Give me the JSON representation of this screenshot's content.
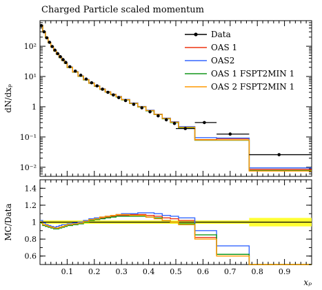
{
  "title": "Charged Particle scaled momentum",
  "chart_data": [
    {
      "type": "line",
      "panel": "main",
      "ylabel": "dN/dx_p",
      "yscale": "log",
      "ylim": [
        0.005,
        700
      ],
      "xlim": [
        0.0,
        1.0
      ],
      "yticks": [
        {
          "value": 0.01,
          "label": "10⁻²"
        },
        {
          "value": 0.1,
          "label": "10⁻¹"
        },
        {
          "value": 1,
          "label": "1"
        },
        {
          "value": 10,
          "label": "10¹"
        },
        {
          "value": 100,
          "label": "10²"
        }
      ],
      "legend_position": "top-right",
      "data": {
        "name": "Data",
        "color": "#000000",
        "points": [
          [
            0.005,
            480
          ],
          [
            0.015,
            300
          ],
          [
            0.025,
            190
          ],
          [
            0.035,
            135
          ],
          [
            0.045,
            98
          ],
          [
            0.055,
            74
          ],
          [
            0.065,
            57
          ],
          [
            0.075,
            45
          ],
          [
            0.085,
            36
          ],
          [
            0.095,
            29
          ],
          [
            0.11,
            21
          ],
          [
            0.13,
            15
          ],
          [
            0.15,
            11
          ],
          [
            0.17,
            8.2
          ],
          [
            0.19,
            6.2
          ],
          [
            0.21,
            4.9
          ],
          [
            0.23,
            3.8
          ],
          [
            0.25,
            3.0
          ],
          [
            0.27,
            2.45
          ],
          [
            0.29,
            2.0
          ],
          [
            0.315,
            1.6
          ],
          [
            0.345,
            1.2
          ],
          [
            0.375,
            0.92
          ],
          [
            0.405,
            0.68
          ],
          [
            0.435,
            0.5
          ],
          [
            0.465,
            0.37
          ],
          [
            0.495,
            0.28
          ],
          [
            0.535,
            0.19
          ],
          [
            0.605,
            0.3
          ],
          [
            0.7,
            0.125
          ],
          [
            0.88,
            0.026
          ]
        ],
        "xerr": [
          [
            0.5,
            0.57
          ],
          [
            0.57,
            0.65
          ],
          [
            0.65,
            0.77
          ],
          [
            0.77,
            1.0
          ]
        ]
      },
      "series": [
        {
          "name": "OAS 1",
          "color": "#ee3311",
          "values": [
            490,
            300,
            190,
            132,
            95,
            71,
            55,
            43,
            34,
            27.5,
            20,
            14,
            10.2,
            7.8,
            6.0,
            4.8,
            3.8,
            3.1,
            2.55,
            2.15,
            1.7,
            1.3,
            1.0,
            0.75,
            0.56,
            0.41,
            0.31,
            0.21,
            0.082,
            0.088,
            0.0085
          ]
        },
        {
          "name": "OAS2",
          "color": "#3366ff",
          "values": [
            500,
            305,
            192,
            134,
            96,
            72,
            56,
            44,
            35,
            28,
            20.5,
            14.5,
            10.5,
            8.0,
            6.2,
            4.9,
            3.9,
            3.15,
            2.6,
            2.2,
            1.75,
            1.33,
            1.02,
            0.77,
            0.57,
            0.42,
            0.32,
            0.22,
            0.095,
            0.092,
            0.0095
          ]
        },
        {
          "name": "OAS 1 FSPT2MIN 1",
          "color": "#109618",
          "values": [
            485,
            298,
            188,
            130,
            94,
            70,
            54,
            42,
            33.5,
            27,
            19.8,
            14,
            10.1,
            7.7,
            5.95,
            4.75,
            3.75,
            3.05,
            2.5,
            2.1,
            1.68,
            1.28,
            0.98,
            0.73,
            0.55,
            0.4,
            0.3,
            0.2,
            0.078,
            0.078,
            0.0078
          ]
        },
        {
          "name": "OAS 2 FSPT2MIN 1",
          "color": "#ff9900",
          "values": [
            488,
            300,
            190,
            131,
            95,
            71,
            55,
            43,
            34,
            27.6,
            20.2,
            14.2,
            10.3,
            7.85,
            6.05,
            4.82,
            3.82,
            3.1,
            2.55,
            2.15,
            1.71,
            1.3,
            1.0,
            0.75,
            0.56,
            0.41,
            0.31,
            0.21,
            0.08,
            0.08,
            0.0075
          ]
        }
      ]
    },
    {
      "type": "line",
      "panel": "ratio",
      "ylabel": "MC/Data",
      "xlabel": "x_p",
      "ylim": [
        0.5,
        1.5
      ],
      "xlim": [
        0.0,
        1.0
      ],
      "yticks": [
        0.6,
        0.8,
        1.0,
        1.2,
        1.4
      ],
      "xticks": [
        0.1,
        0.2,
        0.3,
        0.4,
        0.5,
        0.6,
        0.7,
        0.8,
        0.9
      ],
      "band_color": "#ffff33",
      "band": [
        [
          0.0,
          0.77,
          0.98,
          1.02
        ],
        [
          0.77,
          1.0,
          0.95,
          1.05
        ]
      ],
      "bin_edges": [
        0.0,
        0.01,
        0.02,
        0.03,
        0.04,
        0.05,
        0.06,
        0.07,
        0.08,
        0.09,
        0.1,
        0.12,
        0.14,
        0.16,
        0.18,
        0.2,
        0.22,
        0.24,
        0.26,
        0.28,
        0.3,
        0.33,
        0.36,
        0.39,
        0.42,
        0.45,
        0.48,
        0.51,
        0.57,
        0.65,
        0.77,
        1.0
      ],
      "series": [
        {
          "name": "OAS 1",
          "color": "#ee3311",
          "values": [
            1.0,
            0.97,
            0.96,
            0.95,
            0.94,
            0.93,
            0.93,
            0.94,
            0.95,
            0.96,
            0.97,
            0.98,
            0.99,
            1.01,
            1.03,
            1.04,
            1.05,
            1.06,
            1.07,
            1.08,
            1.08,
            1.09,
            1.09,
            1.08,
            1.07,
            1.05,
            1.04,
            1.02,
            0.82,
            0.62,
            0.34
          ]
        },
        {
          "name": "OAS2",
          "color": "#3366ff",
          "values": [
            1.02,
            0.99,
            0.97,
            0.96,
            0.95,
            0.94,
            0.95,
            0.96,
            0.97,
            0.97,
            0.98,
            0.99,
            1.0,
            1.02,
            1.04,
            1.05,
            1.06,
            1.07,
            1.08,
            1.09,
            1.1,
            1.1,
            1.11,
            1.11,
            1.1,
            1.08,
            1.07,
            1.05,
            0.9,
            0.72,
            0.38
          ]
        },
        {
          "name": "OAS 1 FSPT2MIN 1",
          "color": "#109618",
          "values": [
            0.99,
            0.96,
            0.95,
            0.94,
            0.93,
            0.92,
            0.92,
            0.93,
            0.94,
            0.95,
            0.96,
            0.97,
            0.98,
            1.0,
            1.02,
            1.03,
            1.04,
            1.05,
            1.06,
            1.07,
            1.07,
            1.07,
            1.07,
            1.06,
            1.05,
            1.02,
            1.0,
            0.98,
            0.85,
            0.62,
            0.3
          ]
        },
        {
          "name": "OAS 2 FSPT2MIN 1",
          "color": "#ff9900",
          "values": [
            1.0,
            0.97,
            0.96,
            0.95,
            0.94,
            0.93,
            0.93,
            0.94,
            0.95,
            0.96,
            0.97,
            0.98,
            0.99,
            1.01,
            1.03,
            1.04,
            1.06,
            1.07,
            1.08,
            1.09,
            1.09,
            1.08,
            1.08,
            1.06,
            1.04,
            1.02,
            1.0,
            0.97,
            0.8,
            0.6,
            0.29
          ]
        }
      ]
    }
  ],
  "legend": {
    "entries": [
      "Data",
      "OAS 1",
      "OAS2",
      "OAS 1 FSPT2MIN 1",
      "OAS 2 FSPT2MIN 1"
    ]
  }
}
